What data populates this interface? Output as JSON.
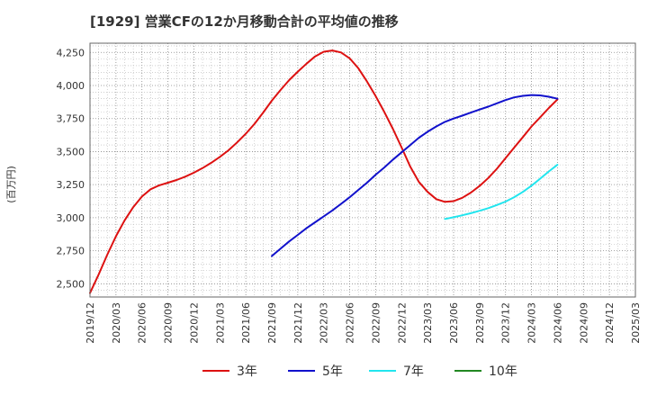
{
  "chart_data": {
    "type": "line",
    "title": "[1929]  営業CFの12か月移動合計の平均値の推移",
    "ylabel": "(百万円)",
    "xlabel": "",
    "ylim": [
      2400,
      4320
    ],
    "yticks": [
      2500,
      2750,
      3000,
      3250,
      3500,
      3750,
      4000,
      4250
    ],
    "ytick_labels": [
      "2,500",
      "2,750",
      "3,000",
      "3,250",
      "3,500",
      "3,750",
      "4,000",
      "4,250"
    ],
    "x_categories": [
      "2019/12",
      "2020/03",
      "2020/06",
      "2020/09",
      "2020/12",
      "2021/03",
      "2021/06",
      "2021/09",
      "2021/12",
      "2022/03",
      "2022/06",
      "2022/09",
      "2022/12",
      "2023/03",
      "2023/06",
      "2023/09",
      "2023/12",
      "2024/03",
      "2024/06",
      "2024/09",
      "2024/12",
      "2025/03"
    ],
    "grid": true,
    "legend_position": "bottom",
    "series": [
      {
        "name": "3年",
        "color": "#dd1111",
        "points": [
          [
            "2019/12",
            2430
          ],
          [
            "2020/01",
            2570
          ],
          [
            "2020/02",
            2720
          ],
          [
            "2020/03",
            2860
          ],
          [
            "2020/04",
            2980
          ],
          [
            "2020/05",
            3080
          ],
          [
            "2020/06",
            3160
          ],
          [
            "2020/07",
            3215
          ],
          [
            "2020/08",
            3245
          ],
          [
            "2020/09",
            3265
          ],
          [
            "2020/10",
            3285
          ],
          [
            "2020/11",
            3310
          ],
          [
            "2020/12",
            3340
          ],
          [
            "2021/01",
            3375
          ],
          [
            "2021/02",
            3415
          ],
          [
            "2021/03",
            3460
          ],
          [
            "2021/04",
            3510
          ],
          [
            "2021/05",
            3570
          ],
          [
            "2021/06",
            3635
          ],
          [
            "2021/07",
            3710
          ],
          [
            "2021/08",
            3795
          ],
          [
            "2021/09",
            3885
          ],
          [
            "2021/10",
            3965
          ],
          [
            "2021/11",
            4040
          ],
          [
            "2021/12",
            4105
          ],
          [
            "2022/01",
            4165
          ],
          [
            "2022/02",
            4220
          ],
          [
            "2022/03",
            4255
          ],
          [
            "2022/04",
            4265
          ],
          [
            "2022/05",
            4250
          ],
          [
            "2022/06",
            4205
          ],
          [
            "2022/07",
            4130
          ],
          [
            "2022/08",
            4030
          ],
          [
            "2022/09",
            3920
          ],
          [
            "2022/10",
            3800
          ],
          [
            "2022/11",
            3670
          ],
          [
            "2022/12",
            3530
          ],
          [
            "2023/01",
            3385
          ],
          [
            "2023/02",
            3270
          ],
          [
            "2023/03",
            3195
          ],
          [
            "2023/04",
            3140
          ],
          [
            "2023/05",
            3120
          ],
          [
            "2023/06",
            3125
          ],
          [
            "2023/07",
            3150
          ],
          [
            "2023/08",
            3190
          ],
          [
            "2023/09",
            3240
          ],
          [
            "2023/10",
            3300
          ],
          [
            "2023/11",
            3370
          ],
          [
            "2023/12",
            3450
          ],
          [
            "2024/01",
            3530
          ],
          [
            "2024/02",
            3610
          ],
          [
            "2024/03",
            3690
          ],
          [
            "2024/04",
            3760
          ],
          [
            "2024/05",
            3830
          ],
          [
            "2024/06",
            3895
          ]
        ]
      },
      {
        "name": "5年",
        "color": "#1111cc",
        "points": [
          [
            "2021/09",
            2710
          ],
          [
            "2021/10",
            2765
          ],
          [
            "2021/11",
            2820
          ],
          [
            "2021/12",
            2870
          ],
          [
            "2022/01",
            2920
          ],
          [
            "2022/02",
            2965
          ],
          [
            "2022/03",
            3010
          ],
          [
            "2022/04",
            3055
          ],
          [
            "2022/05",
            3105
          ],
          [
            "2022/06",
            3155
          ],
          [
            "2022/07",
            3210
          ],
          [
            "2022/08",
            3265
          ],
          [
            "2022/09",
            3325
          ],
          [
            "2022/10",
            3380
          ],
          [
            "2022/11",
            3440
          ],
          [
            "2022/12",
            3495
          ],
          [
            "2023/01",
            3550
          ],
          [
            "2023/02",
            3605
          ],
          [
            "2023/03",
            3650
          ],
          [
            "2023/04",
            3690
          ],
          [
            "2023/05",
            3725
          ],
          [
            "2023/06",
            3750
          ],
          [
            "2023/07",
            3772
          ],
          [
            "2023/08",
            3795
          ],
          [
            "2023/09",
            3818
          ],
          [
            "2023/10",
            3840
          ],
          [
            "2023/11",
            3865
          ],
          [
            "2023/12",
            3890
          ],
          [
            "2024/01",
            3910
          ],
          [
            "2024/02",
            3922
          ],
          [
            "2024/03",
            3928
          ],
          [
            "2024/04",
            3925
          ],
          [
            "2024/05",
            3915
          ],
          [
            "2024/06",
            3900
          ]
        ]
      },
      {
        "name": "7年",
        "color": "#22e5ee",
        "points": [
          [
            "2023/05",
            2990
          ],
          [
            "2023/06",
            3003
          ],
          [
            "2023/07",
            3018
          ],
          [
            "2023/08",
            3034
          ],
          [
            "2023/09",
            3052
          ],
          [
            "2023/10",
            3072
          ],
          [
            "2023/11",
            3096
          ],
          [
            "2023/12",
            3122
          ],
          [
            "2024/01",
            3155
          ],
          [
            "2024/02",
            3195
          ],
          [
            "2024/03",
            3242
          ],
          [
            "2024/04",
            3295
          ],
          [
            "2024/05",
            3350
          ],
          [
            "2024/06",
            3400
          ]
        ]
      },
      {
        "name": "10年",
        "color": "#228822",
        "points": []
      }
    ]
  }
}
